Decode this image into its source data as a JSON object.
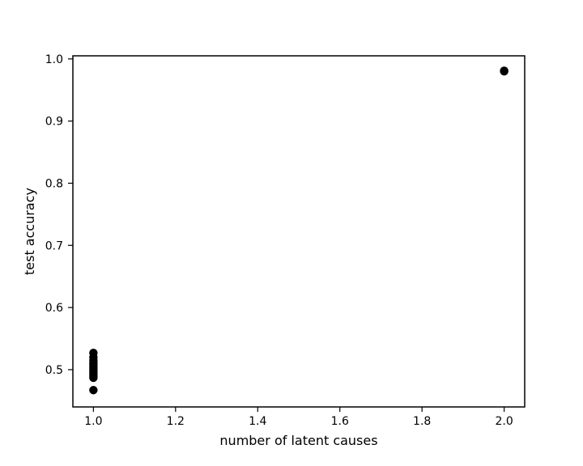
{
  "chart_data": {
    "type": "scatter",
    "title": "",
    "xlabel": "number of latent causes",
    "ylabel": "test accuracy",
    "xlim": [
      0.95,
      2.05
    ],
    "ylim": [
      0.44,
      1.005
    ],
    "xticks": [
      1.0,
      1.2,
      1.4,
      1.6,
      1.8,
      2.0
    ],
    "xtick_labels": [
      "1.0",
      "1.2",
      "1.4",
      "1.6",
      "1.8",
      "2.0"
    ],
    "yticks": [
      0.5,
      0.6,
      0.7,
      0.8,
      0.9,
      1.0
    ],
    "ytick_labels": [
      "0.5",
      "0.6",
      "0.7",
      "0.8",
      "0.9",
      "1.0"
    ],
    "grid": false,
    "marker_color": "#000000",
    "series": [
      {
        "points": [
          {
            "x": 1.0,
            "y": 0.527
          },
          {
            "x": 1.0,
            "y": 0.52
          },
          {
            "x": 1.0,
            "y": 0.515
          },
          {
            "x": 1.0,
            "y": 0.511
          },
          {
            "x": 1.0,
            "y": 0.508
          },
          {
            "x": 1.0,
            "y": 0.505
          },
          {
            "x": 1.0,
            "y": 0.502
          },
          {
            "x": 1.0,
            "y": 0.499
          },
          {
            "x": 1.0,
            "y": 0.496
          },
          {
            "x": 1.0,
            "y": 0.493
          },
          {
            "x": 1.0,
            "y": 0.49
          },
          {
            "x": 1.0,
            "y": 0.487
          },
          {
            "x": 1.0,
            "y": 0.467
          },
          {
            "x": 2.0,
            "y": 0.981
          },
          {
            "x": 2.0,
            "y": 0.98
          }
        ]
      }
    ]
  }
}
